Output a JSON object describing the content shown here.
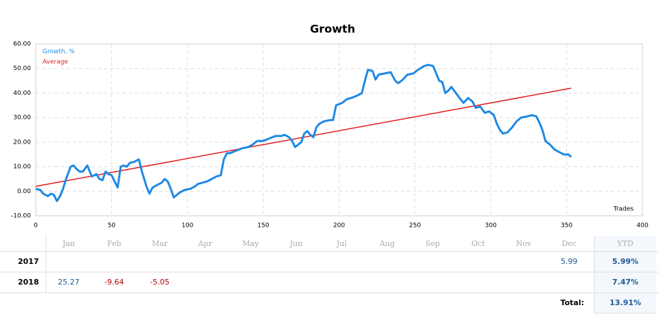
{
  "chart_data": {
    "type": "line",
    "title": "Growth",
    "x_label": "Trades",
    "series": [
      {
        "name": "Growth, %",
        "color": "#1e88e5",
        "x": [
          0,
          3,
          5,
          8,
          10,
          12,
          14,
          16,
          18,
          20,
          23,
          25,
          27,
          29,
          31,
          34,
          37,
          40,
          42,
          44,
          46,
          48,
          50,
          52,
          54,
          56,
          58,
          60,
          62,
          65,
          68,
          70,
          73,
          75,
          77,
          80,
          83,
          85,
          87,
          89,
          91,
          93,
          95,
          98,
          102,
          105,
          107,
          110,
          113,
          116,
          119,
          122,
          124,
          126,
          128,
          132,
          136,
          140,
          143,
          146,
          150,
          154,
          158,
          162,
          164,
          167,
          169,
          171,
          173,
          175,
          177,
          179,
          181,
          183,
          185,
          187,
          190,
          194,
          196,
          198,
          202,
          205,
          208,
          212,
          215,
          217,
          219,
          222,
          224,
          226,
          230,
          234,
          237,
          239,
          242,
          245,
          249,
          252,
          256,
          259,
          262,
          264,
          266,
          268,
          270,
          272,
          274,
          277,
          280,
          282,
          285,
          288,
          290,
          293,
          296,
          299,
          302,
          304,
          306,
          308,
          311,
          314,
          317,
          320,
          324,
          327,
          330,
          332,
          334,
          336,
          339,
          342,
          345,
          348,
          351,
          353
        ],
        "values": [
          1,
          0.5,
          -1,
          -2,
          -1,
          -1.5,
          -4,
          -2,
          1,
          5,
          10,
          10.5,
          9,
          8,
          8,
          10.5,
          6,
          7,
          5,
          4.5,
          8,
          7,
          6.5,
          4,
          1.5,
          10,
          10.5,
          10,
          11.5,
          12,
          13,
          8,
          2,
          -1,
          1.5,
          2.5,
          3.5,
          5,
          4,
          1,
          -2.5,
          -1.5,
          -0.5,
          0.5,
          1,
          2,
          3,
          3.5,
          4,
          5,
          6,
          6.5,
          13,
          15.5,
          15.5,
          16.5,
          17.5,
          18,
          19,
          20.5,
          20.5,
          21.5,
          22.5,
          22.5,
          23,
          22,
          20.5,
          18,
          19,
          20,
          23.5,
          24.5,
          23,
          22,
          26,
          27.5,
          28.5,
          29,
          29,
          35,
          36,
          37.5,
          38,
          39,
          40,
          45,
          49.5,
          49,
          45.5,
          47.5,
          48,
          48.5,
          45,
          44,
          45.5,
          47.5,
          48,
          49.5,
          51,
          51.5,
          51,
          48,
          45,
          44.5,
          40,
          41,
          42.5,
          40,
          37.5,
          36,
          38,
          36.5,
          34,
          34.5,
          32,
          32.5,
          31,
          27.5,
          25,
          23.5,
          24,
          26,
          28.5,
          30,
          30.5,
          31,
          30.5,
          28,
          25,
          20.5,
          19,
          17,
          16,
          15,
          15,
          14
        ]
      },
      {
        "name": "Average",
        "color": "#e31a1c",
        "x": [
          0,
          353
        ],
        "values": [
          2,
          42
        ]
      }
    ],
    "xlim": [
      0,
      400
    ],
    "xticks": [
      0,
      50,
      100,
      150,
      200,
      250,
      300,
      350,
      400
    ],
    "ylim": [
      -10,
      60
    ],
    "yticks": [
      {
        "value": -10,
        "label": "-10.00"
      },
      {
        "value": 0,
        "label": "0.00"
      },
      {
        "value": 10,
        "label": "10.00"
      },
      {
        "value": 20,
        "label": "20.00"
      },
      {
        "value": 30,
        "label": "30.00"
      },
      {
        "value": 40,
        "label": "40.00"
      },
      {
        "value": 50,
        "label": "50.00"
      },
      {
        "value": 60,
        "label": "60.00"
      }
    ],
    "grid": true,
    "legend": "top-left"
  },
  "table": {
    "header": [
      "Jan",
      "Feb",
      "Mar",
      "Apr",
      "May",
      "Jun",
      "Jul",
      "Aug",
      "Sep",
      "Oct",
      "Nov",
      "Dec",
      "YTD"
    ],
    "rows": [
      {
        "year": "2017",
        "months": [
          null,
          null,
          null,
          null,
          null,
          null,
          null,
          null,
          null,
          null,
          null,
          5.99
        ],
        "ytd": "5.99%"
      },
      {
        "year": "2018",
        "months": [
          25.27,
          -9.64,
          -5.05,
          null,
          null,
          null,
          null,
          null,
          null,
          null,
          null,
          null
        ],
        "ytd": "7.47%"
      }
    ],
    "total_label": "Total:",
    "total": "13.91%"
  }
}
